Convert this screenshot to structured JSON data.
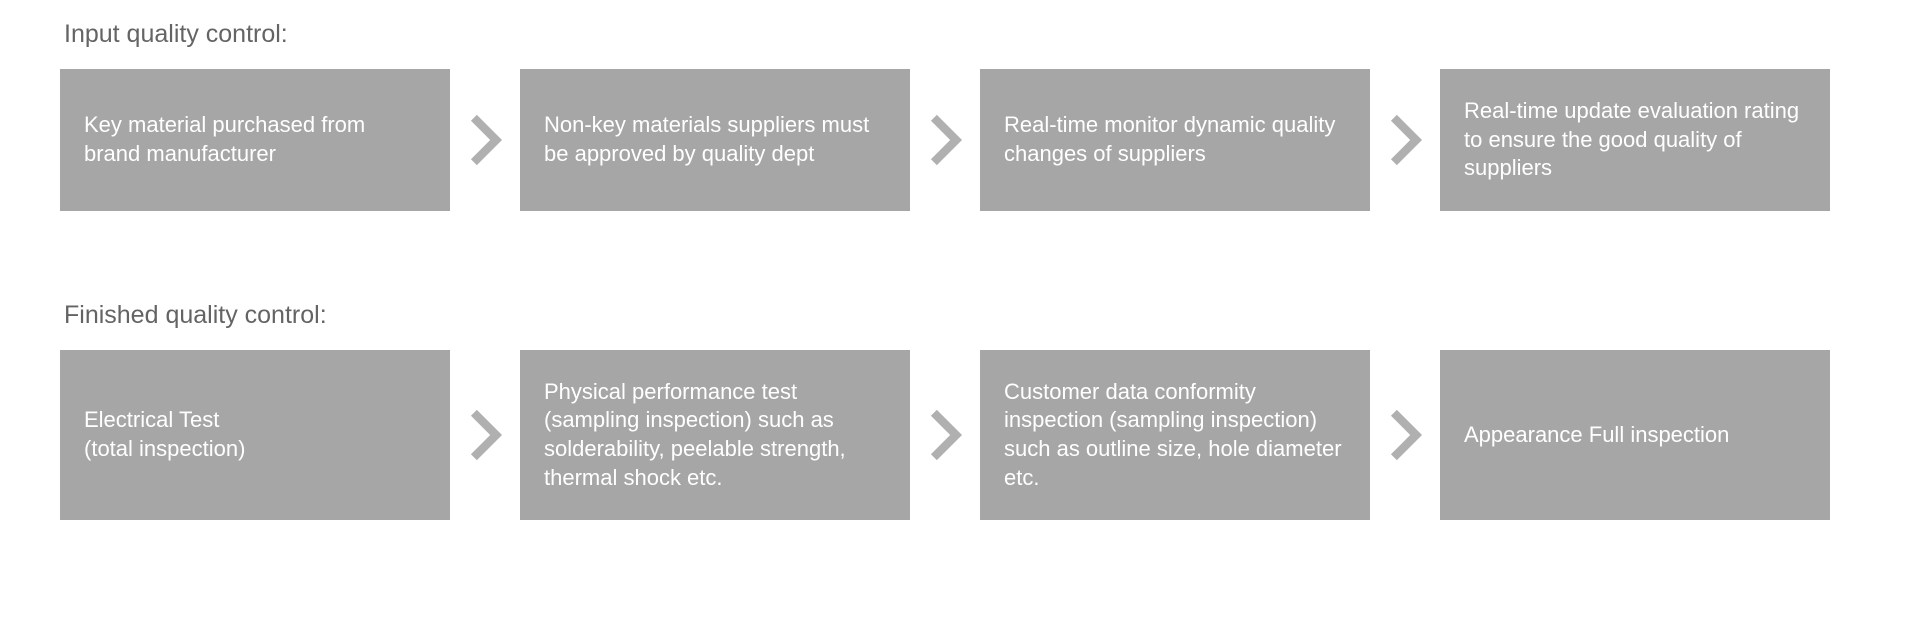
{
  "diagram": {
    "type": "flowchart",
    "background_color": "#ffffff",
    "title_color": "#646464",
    "title_fontsize": 25,
    "box_bg_color": "#a6a6a6",
    "box_text_color": "#ffffff",
    "box_fontsize": 22,
    "arrow_color": "#b0b0b0",
    "sections": [
      {
        "title": "Input quality control:",
        "steps": [
          "Key material purchased from brand manufacturer",
          "Non-key materials suppliers must be approved by quality dept",
          "Real-time monitor dynamic quality changes of suppliers",
          "Real-time update evaluation rating to ensure the good quality of suppliers"
        ]
      },
      {
        "title": "Finished quality control:",
        "steps": [
          "Electrical Test\n(total inspection)",
          "Physical performance test (sampling inspection) such as solderability, peelable strength, thermal shock etc.",
          "Customer data conformity inspection (sampling inspection) such as outline size, hole diameter etc.",
          "Appearance Full inspection"
        ]
      }
    ]
  }
}
